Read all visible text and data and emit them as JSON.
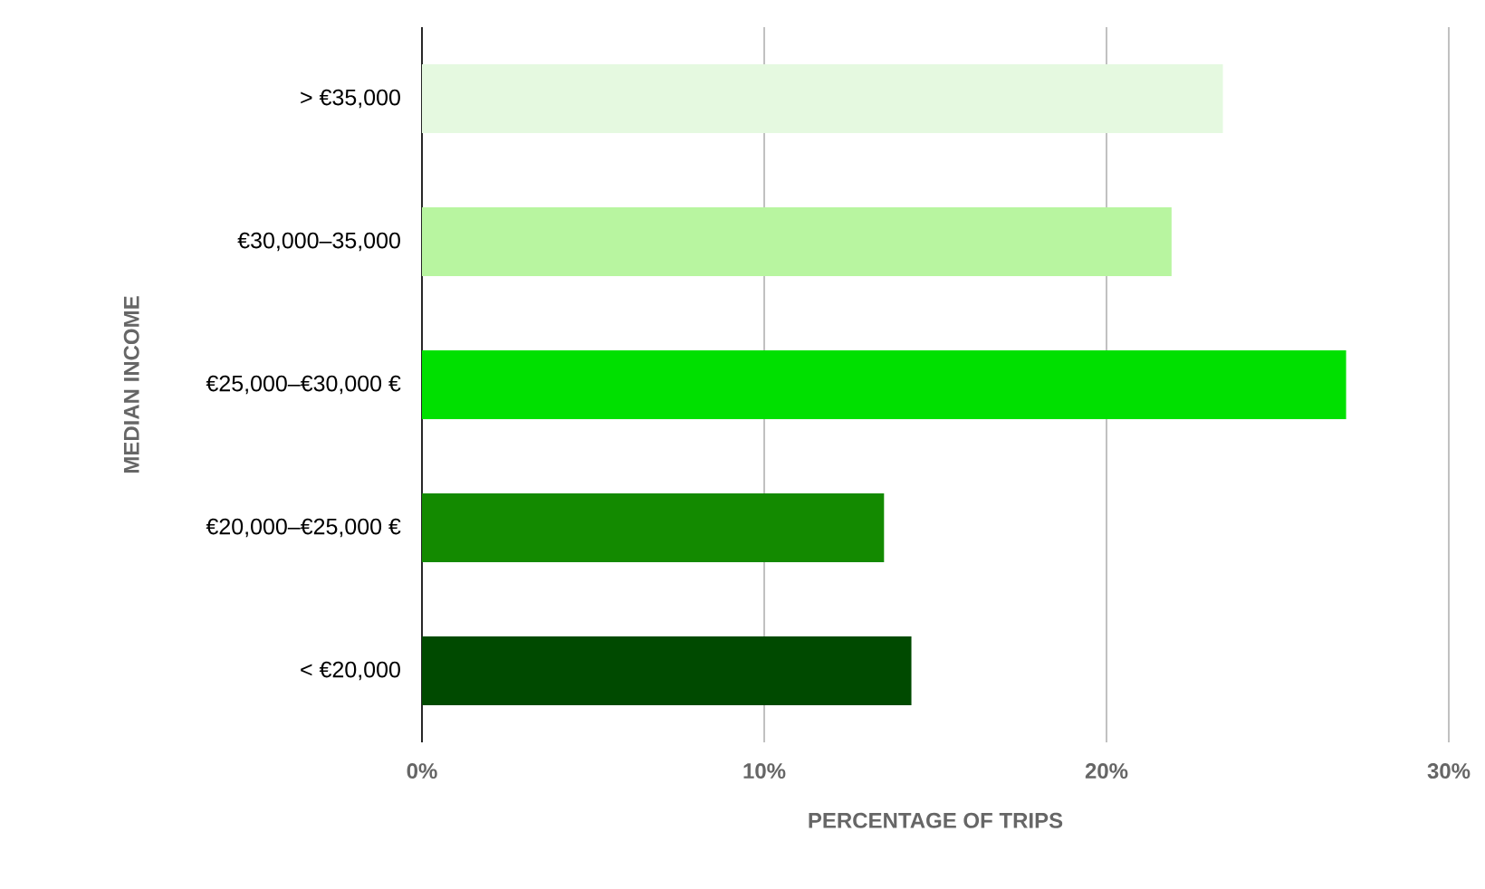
{
  "chart_data": {
    "type": "bar",
    "orientation": "horizontal",
    "xlabel": "PERCENTAGE OF TRIPS",
    "ylabel": "MEDIAN INCOME",
    "categories": [
      "> €35,000",
      "€30,000–35,000",
      "€25,000–€30,000 €",
      "€20,000–€25,000 €",
      "< €20,000"
    ],
    "values": [
      23.4,
      21.9,
      27.0,
      13.5,
      14.3
    ],
    "colors": [
      "#e5f9e0",
      "#b8f5a0",
      "#00e000",
      "#138a00",
      "#004a00"
    ],
    "xlim": [
      0,
      30
    ],
    "xticks": [
      {
        "value": 0,
        "label": "0%"
      },
      {
        "value": 10,
        "label": "10%"
      },
      {
        "value": 20,
        "label": "20%"
      },
      {
        "value": 30,
        "label": "30%"
      }
    ],
    "grid": "x"
  }
}
